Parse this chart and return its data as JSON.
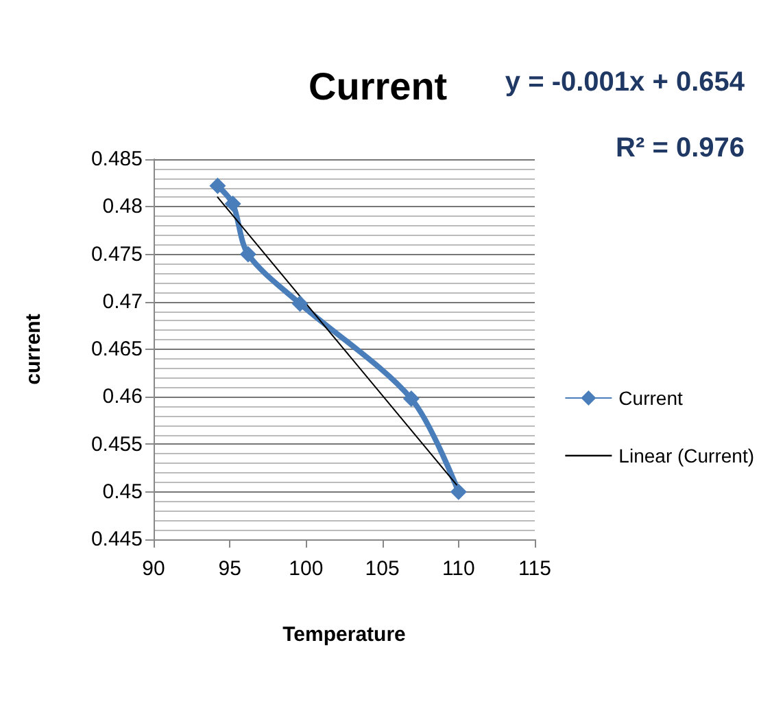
{
  "chart_data": {
    "type": "line",
    "title": "Current",
    "xlabel": "Temperature",
    "ylabel": "current",
    "annotations": [
      "y = -0.001x + 0.654",
      "R² = 0.976"
    ],
    "series": [
      {
        "name": "Current",
        "color": "#4a7ebb",
        "x": [
          94.2,
          95.2,
          96.2,
          99.6,
          106.9,
          110.0
        ],
        "values": [
          0.4822,
          0.4803,
          0.475,
          0.4698,
          0.4598,
          0.45
        ],
        "marker": "diamond"
      },
      {
        "name": "Linear (Current)",
        "color": "#000000",
        "x": [
          94.2,
          110.0
        ],
        "values": [
          0.481,
          0.4505
        ],
        "marker": "none"
      }
    ],
    "xlim": [
      90,
      115
    ],
    "xticks": [
      90,
      95,
      100,
      105,
      110,
      115
    ],
    "ylim": [
      0.445,
      0.485
    ],
    "yticks": [
      0.445,
      0.45,
      0.455,
      0.46,
      0.465,
      0.47,
      0.475,
      0.48,
      0.485
    ],
    "grid": "y",
    "legend": "right",
    "line_style": "solid"
  }
}
